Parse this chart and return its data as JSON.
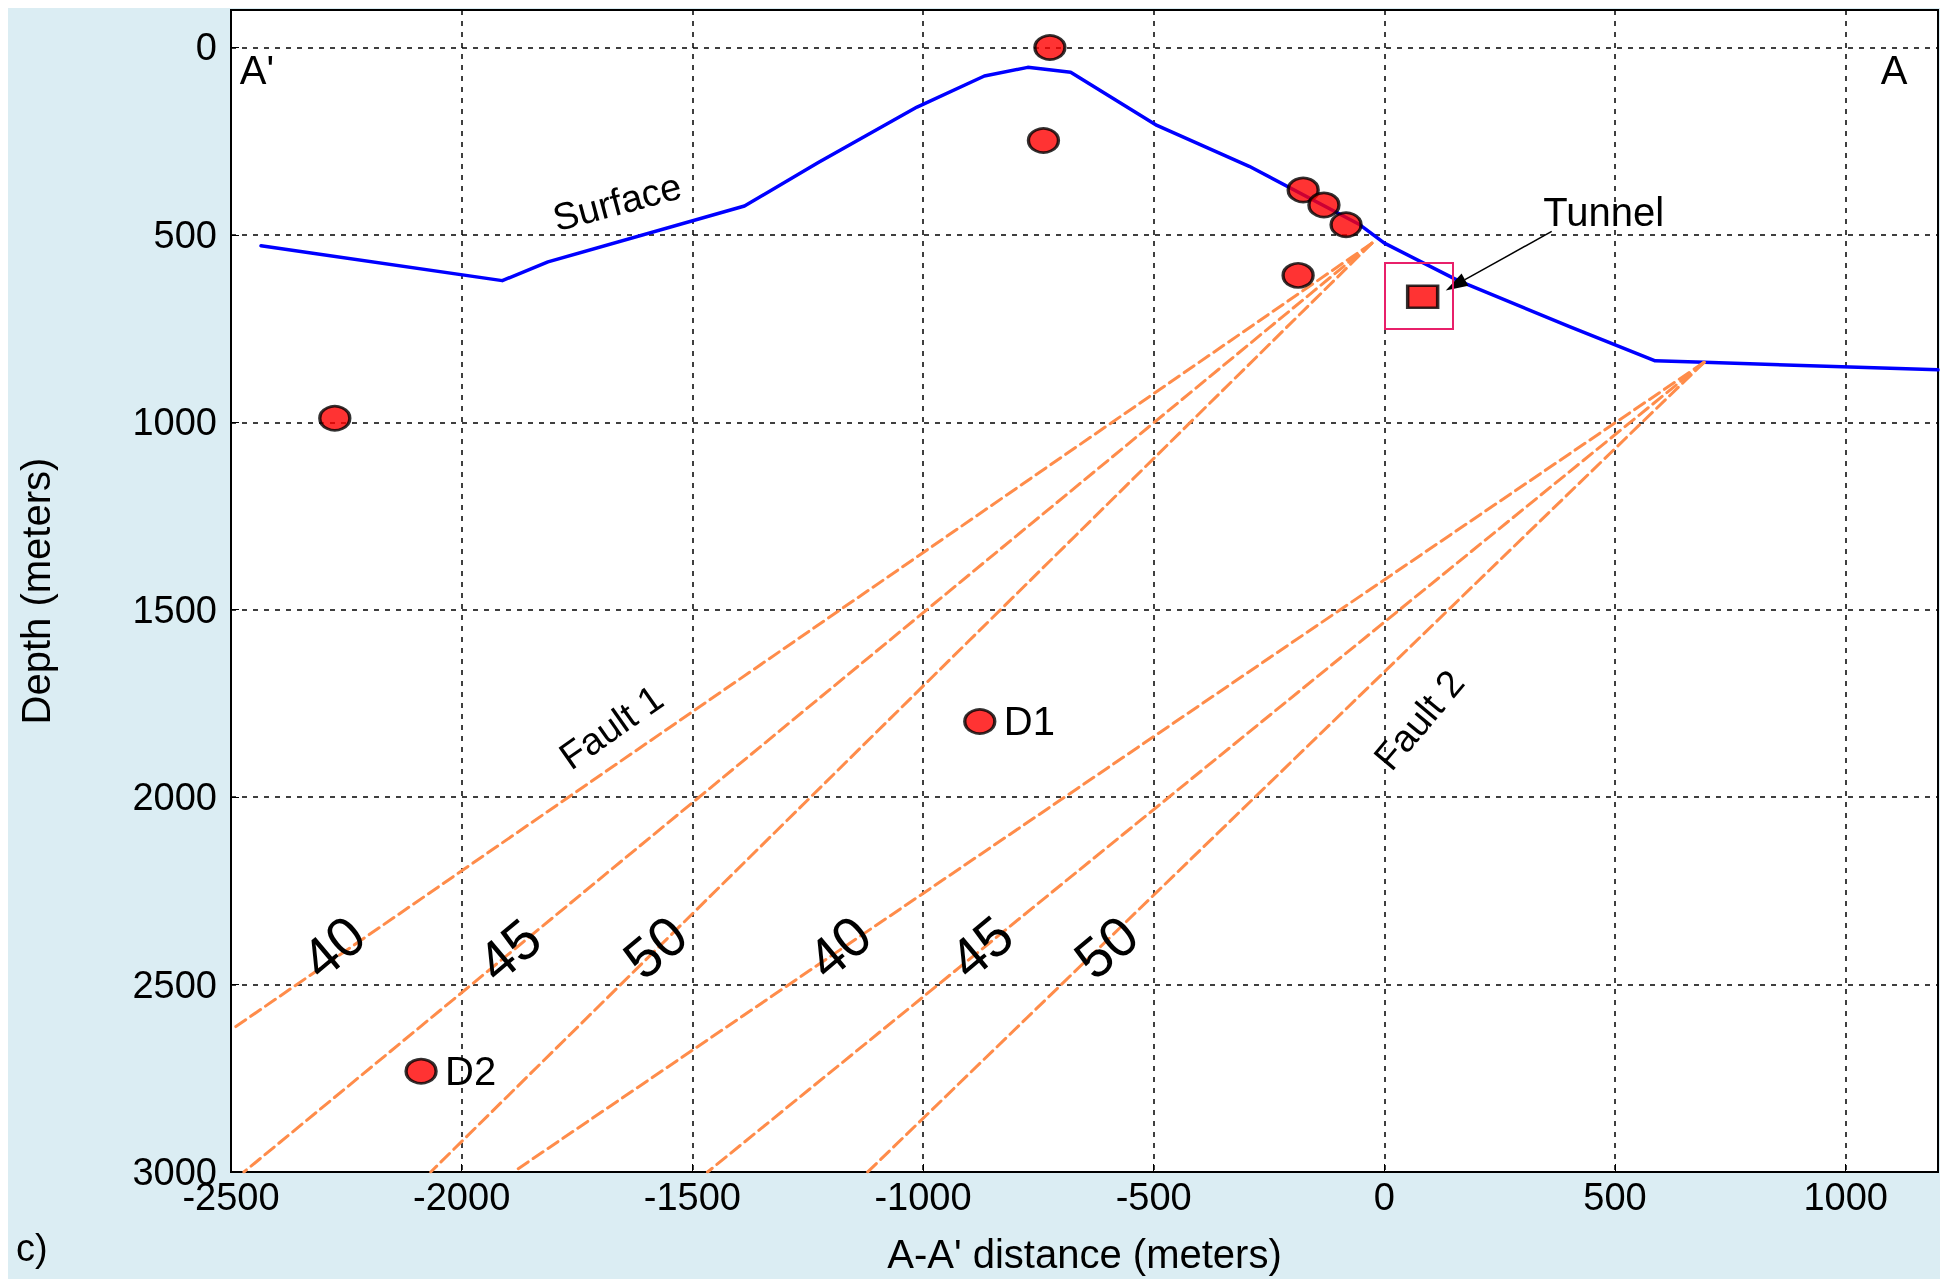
{
  "chart_data": {
    "type": "line",
    "xlabel": "A-A' distance (meters)",
    "ylabel": "Depth (meters)",
    "xlim": [
      -2500,
      1200
    ],
    "xticks": [
      -2500,
      -2000,
      -1500,
      -1000,
      -500,
      0,
      500,
      1000
    ],
    "ylim": [
      3000,
      -100
    ],
    "yticks": [
      0,
      500,
      1000,
      1500,
      2000,
      2500,
      3000
    ],
    "grid": true,
    "series": [
      {
        "color": "#0000ff",
        "line_style": "solid",
        "marker": "none",
        "x": [
          -2435,
          -1912,
          -1813,
          -1387,
          -1227,
          -1013,
          -867,
          -773,
          -680,
          -493,
          -293,
          -53,
          0,
          160,
          400,
          587,
          693,
          1200
        ],
        "values": [
          529,
          622,
          572,
          423,
          307,
          159,
          76,
          53,
          66,
          208,
          317,
          473,
          522,
          622,
          744,
          836,
          840,
          860
        ]
      },
      {
        "type": "line",
        "color": "#ff8c4a",
        "line_style": "dashed",
        "marker": "none",
        "x": [
          -27,
          -2493
        ],
        "values": [
          522,
          2615
        ]
      },
      {
        "type": "line",
        "color": "#ff8c4a",
        "line_style": "dashed",
        "marker": "none",
        "x": [
          -27,
          -2472
        ],
        "values": [
          522,
          3000
        ]
      },
      {
        "type": "line",
        "color": "#ff8c4a",
        "line_style": "dashed",
        "marker": "none",
        "x": [
          -27,
          -2067
        ],
        "values": [
          522,
          3000
        ]
      },
      {
        "type": "line",
        "color": "#ff8c4a",
        "line_style": "dashed",
        "marker": "none",
        "x": [
          693,
          -1888
        ],
        "values": [
          840,
          3000
        ]
      },
      {
        "type": "line",
        "color": "#ff8c4a",
        "line_style": "dashed",
        "marker": "none",
        "x": [
          693,
          -1467
        ],
        "values": [
          840,
          3000
        ]
      },
      {
        "type": "line",
        "color": "#ff8c4a",
        "line_style": "dashed",
        "marker": "none",
        "x": [
          693,
          -1120
        ],
        "values": [
          840,
          3000
        ]
      },
      {
        "type": "scatter",
        "color": "#ff0000",
        "marker": "circle",
        "x": [
          -725,
          -739,
          -176,
          -131,
          -83,
          -187,
          -2275,
          -877,
          -2088
        ],
        "values": [
          0,
          248,
          380,
          420,
          473,
          608,
          989,
          1798,
          2731
        ]
      },
      {
        "type": "scatter",
        "color": "#ff0000",
        "marker": "square",
        "x": [
          83
        ],
        "values": [
          665
        ]
      }
    ],
    "annotations": [
      "A'",
      "A",
      "Surface",
      "Fault 1",
      "Fault 2",
      "40",
      "45",
      "50",
      "40",
      "45",
      "50",
      {
        "text": "D1",
        "x": -877,
        "y": 1798
      },
      {
        "text": "D2",
        "x": -2088,
        "y": 2731
      },
      {
        "text": "Tunnel",
        "x": 133,
        "y": 648
      },
      "c)"
    ]
  }
}
